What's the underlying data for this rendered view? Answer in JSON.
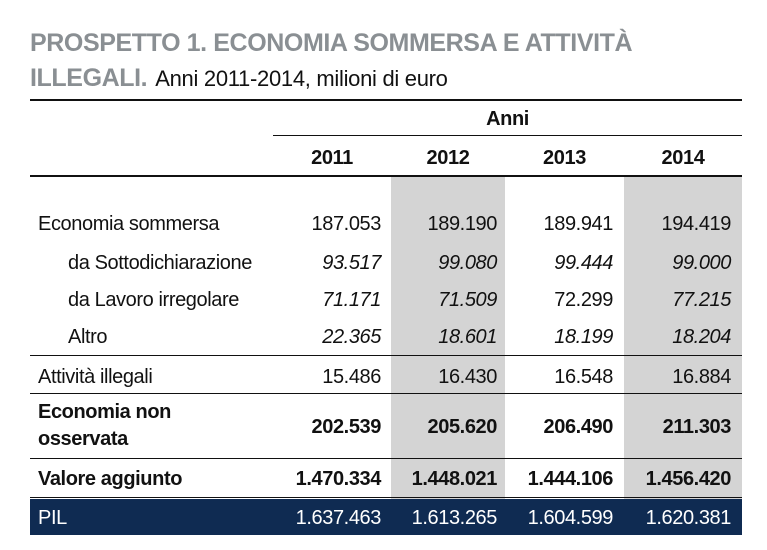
{
  "title": {
    "main": "PROSPETTO 1. ECONOMIA SOMMERSA E ATTIVITÀ ILLEGALI.",
    "subtitle": "Anni 2011-2014, milioni di euro"
  },
  "table": {
    "group_header": "Anni",
    "years": [
      "2011",
      "2012",
      "2013",
      "2014"
    ],
    "rows": [
      {
        "label": "Economia sommersa",
        "values": [
          "187.053",
          "189.190",
          "189.941",
          "194.419"
        ]
      },
      {
        "label": "da Sottodichiarazione",
        "values": [
          "93.517",
          "99.080",
          "99.444",
          "99.000"
        ]
      },
      {
        "label": "da Lavoro irregolare",
        "values": [
          "71.171",
          "71.509",
          "72.299",
          "77.215"
        ]
      },
      {
        "label": "Altro",
        "values": [
          "22.365",
          "18.601",
          "18.199",
          "18.204"
        ]
      },
      {
        "label": "Attività illegali",
        "values": [
          "15.486",
          "16.430",
          "16.548",
          "16.884"
        ]
      },
      {
        "label_line1": "Economia non",
        "label_line2": "osservata",
        "values": [
          "202.539",
          "205.620",
          "206.490",
          "211.303"
        ]
      },
      {
        "label": "Valore aggiunto",
        "values": [
          "1.470.334",
          "1.448.021",
          "1.444.106",
          "1.456.420"
        ]
      },
      {
        "label": "PIL",
        "values": [
          "1.637.463",
          "1.613.265",
          "1.604.599",
          "1.620.381"
        ]
      }
    ]
  },
  "colors": {
    "title_gray": "#8a8f93",
    "shade_gray": "#d4d4d4",
    "pil_navy": "#0f2b52"
  }
}
